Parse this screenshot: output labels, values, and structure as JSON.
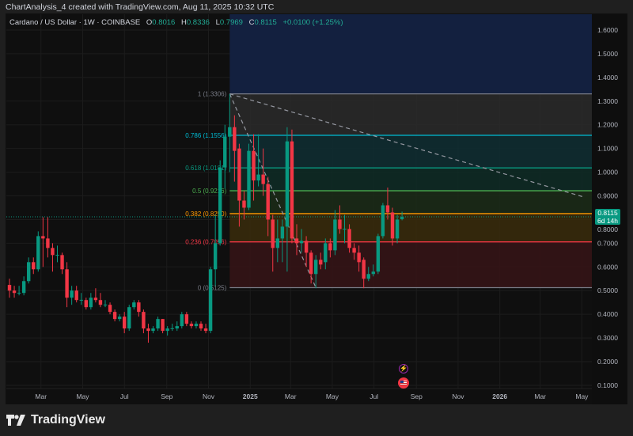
{
  "credit": "ChartAnalysis_4 created with TradingView.com, Aug 11, 2025 10:32 UTC",
  "legend": {
    "symbol": "Cardano / US Dollar · 1W · COINBASE",
    "o_label": "O",
    "o": "0.8016",
    "h_label": "H",
    "h": "0.8336",
    "l_label": "L",
    "l": "0.7969",
    "c_label": "C",
    "c": "0.8115",
    "change": "+0.0100 (+1.25%)"
  },
  "last_price": {
    "value": "0.8115",
    "countdown": "6d 14h"
  },
  "brand": "TradingView",
  "colors": {
    "up": "#089981",
    "down": "#f23645",
    "background": "#0f0f0f"
  },
  "events": [
    {
      "icon": "lightning-icon",
      "color": "#9c27b0"
    },
    {
      "icon": "us-flag-icon",
      "color": "#f23645"
    }
  ],
  "chart_data": {
    "type": "candlestick",
    "title": "Cardano / US Dollar · 1W · COINBASE",
    "ylim": [
      0.1,
      1.6
    ],
    "y_ticks": [
      "1.6000",
      "1.5000",
      "1.4000",
      "1.3000",
      "1.2000",
      "1.1000",
      "1.0000",
      "0.9000",
      "0.8000",
      "0.7000",
      "0.6000",
      "0.5000",
      "0.4000",
      "0.3000",
      "0.2000",
      "0.1000"
    ],
    "x_ticks": [
      {
        "date": "2024-03-01",
        "label": "Mar"
      },
      {
        "date": "2024-05-01",
        "label": "May"
      },
      {
        "date": "2024-07-01",
        "label": "Jul"
      },
      {
        "date": "2024-09-01",
        "label": "Sep"
      },
      {
        "date": "2024-11-01",
        "label": "Nov"
      },
      {
        "date": "2025-01-01",
        "label": "2025",
        "bold": true
      },
      {
        "date": "2025-03-01",
        "label": "Mar"
      },
      {
        "date": "2025-05-01",
        "label": "May"
      },
      {
        "date": "2025-07-01",
        "label": "Jul"
      },
      {
        "date": "2025-09-01",
        "label": "Sep"
      },
      {
        "date": "2025-11-01",
        "label": "Nov"
      },
      {
        "date": "2026-01-01",
        "label": "2026",
        "bold": true
      },
      {
        "date": "2026-03-01",
        "label": "Mar"
      },
      {
        "date": "2026-05-01",
        "label": "May"
      }
    ],
    "candles": [
      [
        "2024-01-15",
        0.524,
        0.55,
        0.47,
        0.5
      ],
      [
        "2024-01-22",
        0.5,
        0.52,
        0.47,
        0.49
      ],
      [
        "2024-01-29",
        0.49,
        0.52,
        0.48,
        0.491
      ],
      [
        "2024-02-05",
        0.49,
        0.56,
        0.48,
        0.54
      ],
      [
        "2024-02-12",
        0.54,
        0.64,
        0.53,
        0.62
      ],
      [
        "2024-02-19",
        0.62,
        0.64,
        0.57,
        0.59
      ],
      [
        "2024-02-26",
        0.59,
        0.75,
        0.58,
        0.73
      ],
      [
        "2024-03-04",
        0.73,
        0.81,
        0.6,
        0.72
      ],
      [
        "2024-03-11",
        0.72,
        0.81,
        0.64,
        0.68
      ],
      [
        "2024-03-18",
        0.68,
        0.7,
        0.58,
        0.65
      ],
      [
        "2024-03-25",
        0.65,
        0.69,
        0.62,
        0.651
      ],
      [
        "2024-04-01",
        0.65,
        0.66,
        0.57,
        0.59
      ],
      [
        "2024-04-08",
        0.59,
        0.62,
        0.43,
        0.47
      ],
      [
        "2024-04-15",
        0.47,
        0.52,
        0.44,
        0.5
      ],
      [
        "2024-04-22",
        0.5,
        0.52,
        0.45,
        0.46
      ],
      [
        "2024-04-29",
        0.46,
        0.49,
        0.44,
        0.461
      ],
      [
        "2024-05-06",
        0.46,
        0.47,
        0.42,
        0.43
      ],
      [
        "2024-05-13",
        0.43,
        0.49,
        0.42,
        0.47
      ],
      [
        "2024-05-20",
        0.47,
        0.51,
        0.45,
        0.46
      ],
      [
        "2024-05-27",
        0.46,
        0.49,
        0.43,
        0.44
      ],
      [
        "2024-06-03",
        0.44,
        0.46,
        0.43,
        0.441
      ],
      [
        "2024-06-10",
        0.44,
        0.45,
        0.4,
        0.41
      ],
      [
        "2024-06-17",
        0.41,
        0.42,
        0.37,
        0.38
      ],
      [
        "2024-06-24",
        0.38,
        0.4,
        0.37,
        0.39
      ],
      [
        "2024-07-01",
        0.39,
        0.41,
        0.32,
        0.34
      ],
      [
        "2024-07-08",
        0.34,
        0.44,
        0.33,
        0.43
      ],
      [
        "2024-07-15",
        0.43,
        0.46,
        0.42,
        0.45
      ],
      [
        "2024-07-22",
        0.45,
        0.46,
        0.39,
        0.41
      ],
      [
        "2024-07-29",
        0.41,
        0.42,
        0.32,
        0.34
      ],
      [
        "2024-08-05",
        0.34,
        0.36,
        0.28,
        0.33
      ],
      [
        "2024-08-12",
        0.33,
        0.35,
        0.32,
        0.34
      ],
      [
        "2024-08-19",
        0.34,
        0.39,
        0.33,
        0.38
      ],
      [
        "2024-08-26",
        0.38,
        0.38,
        0.32,
        0.33
      ],
      [
        "2024-09-02",
        0.33,
        0.35,
        0.31,
        0.34
      ],
      [
        "2024-09-09",
        0.34,
        0.36,
        0.33,
        0.341
      ],
      [
        "2024-09-16",
        0.34,
        0.37,
        0.33,
        0.35
      ],
      [
        "2024-09-23",
        0.35,
        0.41,
        0.34,
        0.4
      ],
      [
        "2024-09-30",
        0.4,
        0.41,
        0.35,
        0.36
      ],
      [
        "2024-10-07",
        0.36,
        0.37,
        0.34,
        0.35
      ],
      [
        "2024-10-14",
        0.35,
        0.37,
        0.34,
        0.36
      ],
      [
        "2024-10-21",
        0.36,
        0.37,
        0.33,
        0.34
      ],
      [
        "2024-10-28",
        0.34,
        0.36,
        0.32,
        0.33
      ],
      [
        "2024-11-04",
        0.33,
        0.6,
        0.32,
        0.59
      ],
      [
        "2024-11-11",
        0.59,
        0.82,
        0.52,
        0.7
      ],
      [
        "2024-11-18",
        0.7,
        1.05,
        0.69,
        1.02
      ],
      [
        "2024-11-25",
        1.02,
        1.2,
        0.93,
        1.15
      ],
      [
        "2024-12-02",
        1.15,
        1.33,
        1.0,
        1.19
      ],
      [
        "2024-12-09",
        1.19,
        1.24,
        0.96,
        1.09
      ],
      [
        "2024-12-16",
        1.1,
        1.12,
        0.77,
        0.88
      ],
      [
        "2024-12-23",
        0.88,
        0.92,
        0.8,
        0.85
      ],
      [
        "2024-12-30",
        0.85,
        1.12,
        0.84,
        1.09
      ],
      [
        "2025-01-06",
        1.09,
        1.16,
        0.88,
        0.965
      ],
      [
        "2025-01-13",
        0.965,
        1.16,
        0.94,
        0.99
      ],
      [
        "2025-01-20",
        0.99,
        1.1,
        0.9,
        0.95
      ],
      [
        "2025-01-27",
        0.95,
        0.98,
        0.73,
        0.8
      ],
      [
        "2025-02-03",
        0.8,
        0.82,
        0.58,
        0.68
      ],
      [
        "2025-02-10",
        0.68,
        0.8,
        0.62,
        0.72
      ],
      [
        "2025-02-17",
        0.72,
        0.8,
        0.62,
        0.77
      ],
      [
        "2025-02-24",
        0.77,
        1.19,
        0.58,
        1.13
      ],
      [
        "2025-03-03",
        1.13,
        1.18,
        0.7,
        0.72
      ],
      [
        "2025-03-10",
        0.72,
        0.78,
        0.65,
        0.7
      ],
      [
        "2025-03-17",
        0.7,
        0.76,
        0.66,
        0.71
      ],
      [
        "2025-03-24",
        0.71,
        0.73,
        0.6,
        0.66
      ],
      [
        "2025-03-31",
        0.66,
        0.67,
        0.53,
        0.57
      ],
      [
        "2025-04-07",
        0.57,
        0.65,
        0.51,
        0.63
      ],
      [
        "2025-04-14",
        0.63,
        0.66,
        0.59,
        0.61
      ],
      [
        "2025-04-21",
        0.62,
        0.72,
        0.59,
        0.7
      ],
      [
        "2025-04-28",
        0.7,
        0.72,
        0.64,
        0.67
      ],
      [
        "2025-05-05",
        0.67,
        0.84,
        0.65,
        0.8
      ],
      [
        "2025-05-12",
        0.8,
        0.86,
        0.74,
        0.76
      ],
      [
        "2025-05-19",
        0.76,
        0.82,
        0.7,
        0.761
      ],
      [
        "2025-05-26",
        0.76,
        0.78,
        0.66,
        0.68
      ],
      [
        "2025-06-02",
        0.68,
        0.7,
        0.63,
        0.66
      ],
      [
        "2025-06-09",
        0.66,
        0.69,
        0.58,
        0.62
      ],
      [
        "2025-06-16",
        0.63,
        0.64,
        0.51,
        0.55
      ],
      [
        "2025-06-23",
        0.55,
        0.6,
        0.54,
        0.57
      ],
      [
        "2025-06-30",
        0.57,
        0.61,
        0.56,
        0.58
      ],
      [
        "2025-07-07",
        0.58,
        0.74,
        0.57,
        0.73
      ],
      [
        "2025-07-14",
        0.73,
        0.87,
        0.72,
        0.86
      ],
      [
        "2025-07-21",
        0.86,
        0.935,
        0.8,
        0.83
      ],
      [
        "2025-07-28",
        0.83,
        0.85,
        0.69,
        0.72
      ],
      [
        "2025-08-04",
        0.72,
        0.82,
        0.7,
        0.8
      ],
      [
        "2025-08-11",
        0.8016,
        0.8336,
        0.7969,
        0.8115
      ]
    ],
    "fibonacci": {
      "start_date": "2024-12-02",
      "levels": [
        {
          "ratio": "1",
          "price": 1.3306,
          "label": "1 (1.3306)",
          "color": "#787b86",
          "fill": "#2a2a2a"
        },
        {
          "ratio": "0.786",
          "price": 1.1556,
          "label": "0.786 (1.1556)",
          "color": "#00bcd4",
          "fill": "#0f2e33"
        },
        {
          "ratio": "0.618",
          "price": 1.0181,
          "label": "0.618 (1.0181)",
          "color": "#089981",
          "fill": "#0e2b26"
        },
        {
          "ratio": "0.5",
          "price": 0.9216,
          "label": "0.5 (0.9216)",
          "color": "#4caf50",
          "fill": "#1b2b17"
        },
        {
          "ratio": "0.382",
          "price": 0.825,
          "label": "0.382 (0.8250)",
          "color": "#ff9800",
          "fill": "#3a2b0c"
        },
        {
          "ratio": "0.236",
          "price": 0.7056,
          "label": "0.236 (0.7056)",
          "color": "#f23645",
          "fill": "#361416"
        },
        {
          "ratio": "0",
          "price": 0.5125,
          "label": "0 (0.5125)",
          "color": "#787b86",
          "fill": null
        }
      ],
      "extension_fill": "#13203f"
    },
    "trend_lines": [
      {
        "from": [
          "2024-12-02",
          1.3306
        ],
        "to": [
          "2025-04-07",
          0.5125
        ],
        "style": "dashed",
        "color": "#9598a1"
      },
      {
        "from": [
          "2024-12-02",
          1.3306
        ],
        "to": [
          "2026-05-04",
          0.895
        ],
        "style": "dashed",
        "color": "#9598a1"
      }
    ],
    "last_price_line": 0.8115
  }
}
